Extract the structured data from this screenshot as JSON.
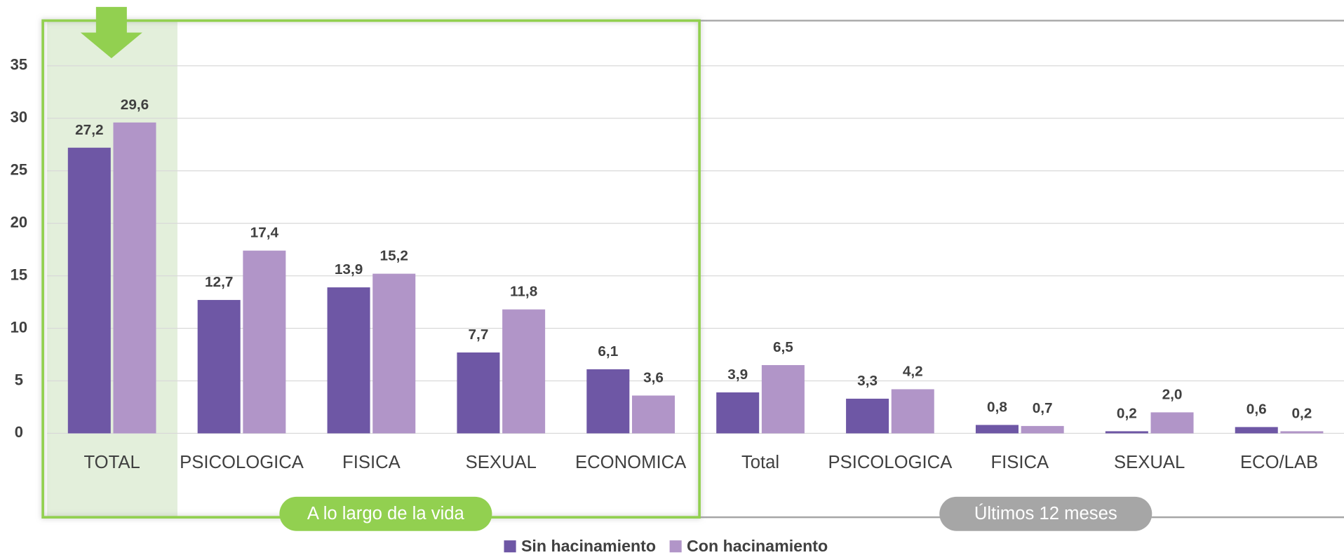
{
  "chart_data": {
    "type": "bar",
    "categories": [
      "TOTAL",
      "PSICOLOGICA",
      "FISICA",
      "SEXUAL",
      "ECONOMICA",
      "Total",
      "PSICOLOGICA",
      "FISICA",
      "SEXUAL",
      "ECO/LAB"
    ],
    "series": [
      {
        "name": "Sin hacinamiento",
        "color": "#6e57a5",
        "values": [
          27.2,
          12.7,
          13.9,
          7.7,
          6.1,
          3.9,
          3.3,
          0.8,
          0.2,
          0.6
        ],
        "value_labels": [
          "27,2",
          "12,7",
          "13,9",
          "7,7",
          "6,1",
          "3,9",
          "3,3",
          "0,8",
          "0,2",
          "0,6"
        ]
      },
      {
        "name": "Con hacinamiento",
        "color": "#b195c8",
        "values": [
          29.6,
          17.4,
          15.2,
          11.8,
          3.6,
          6.5,
          4.2,
          0.7,
          2.0,
          0.2
        ],
        "value_labels": [
          "29,6",
          "17,4",
          "15,2",
          "11,8",
          "3,6",
          "6,5",
          "4,2",
          "0,7",
          "2,0",
          "0,2"
        ]
      }
    ],
    "group_labels": [
      "A lo largo de la vida",
      "Últimos 12 meses"
    ],
    "ylim": [
      0,
      39.3
    ],
    "yticks": [
      0,
      5,
      10,
      15,
      20,
      25,
      30,
      35
    ],
    "grid": true
  }
}
